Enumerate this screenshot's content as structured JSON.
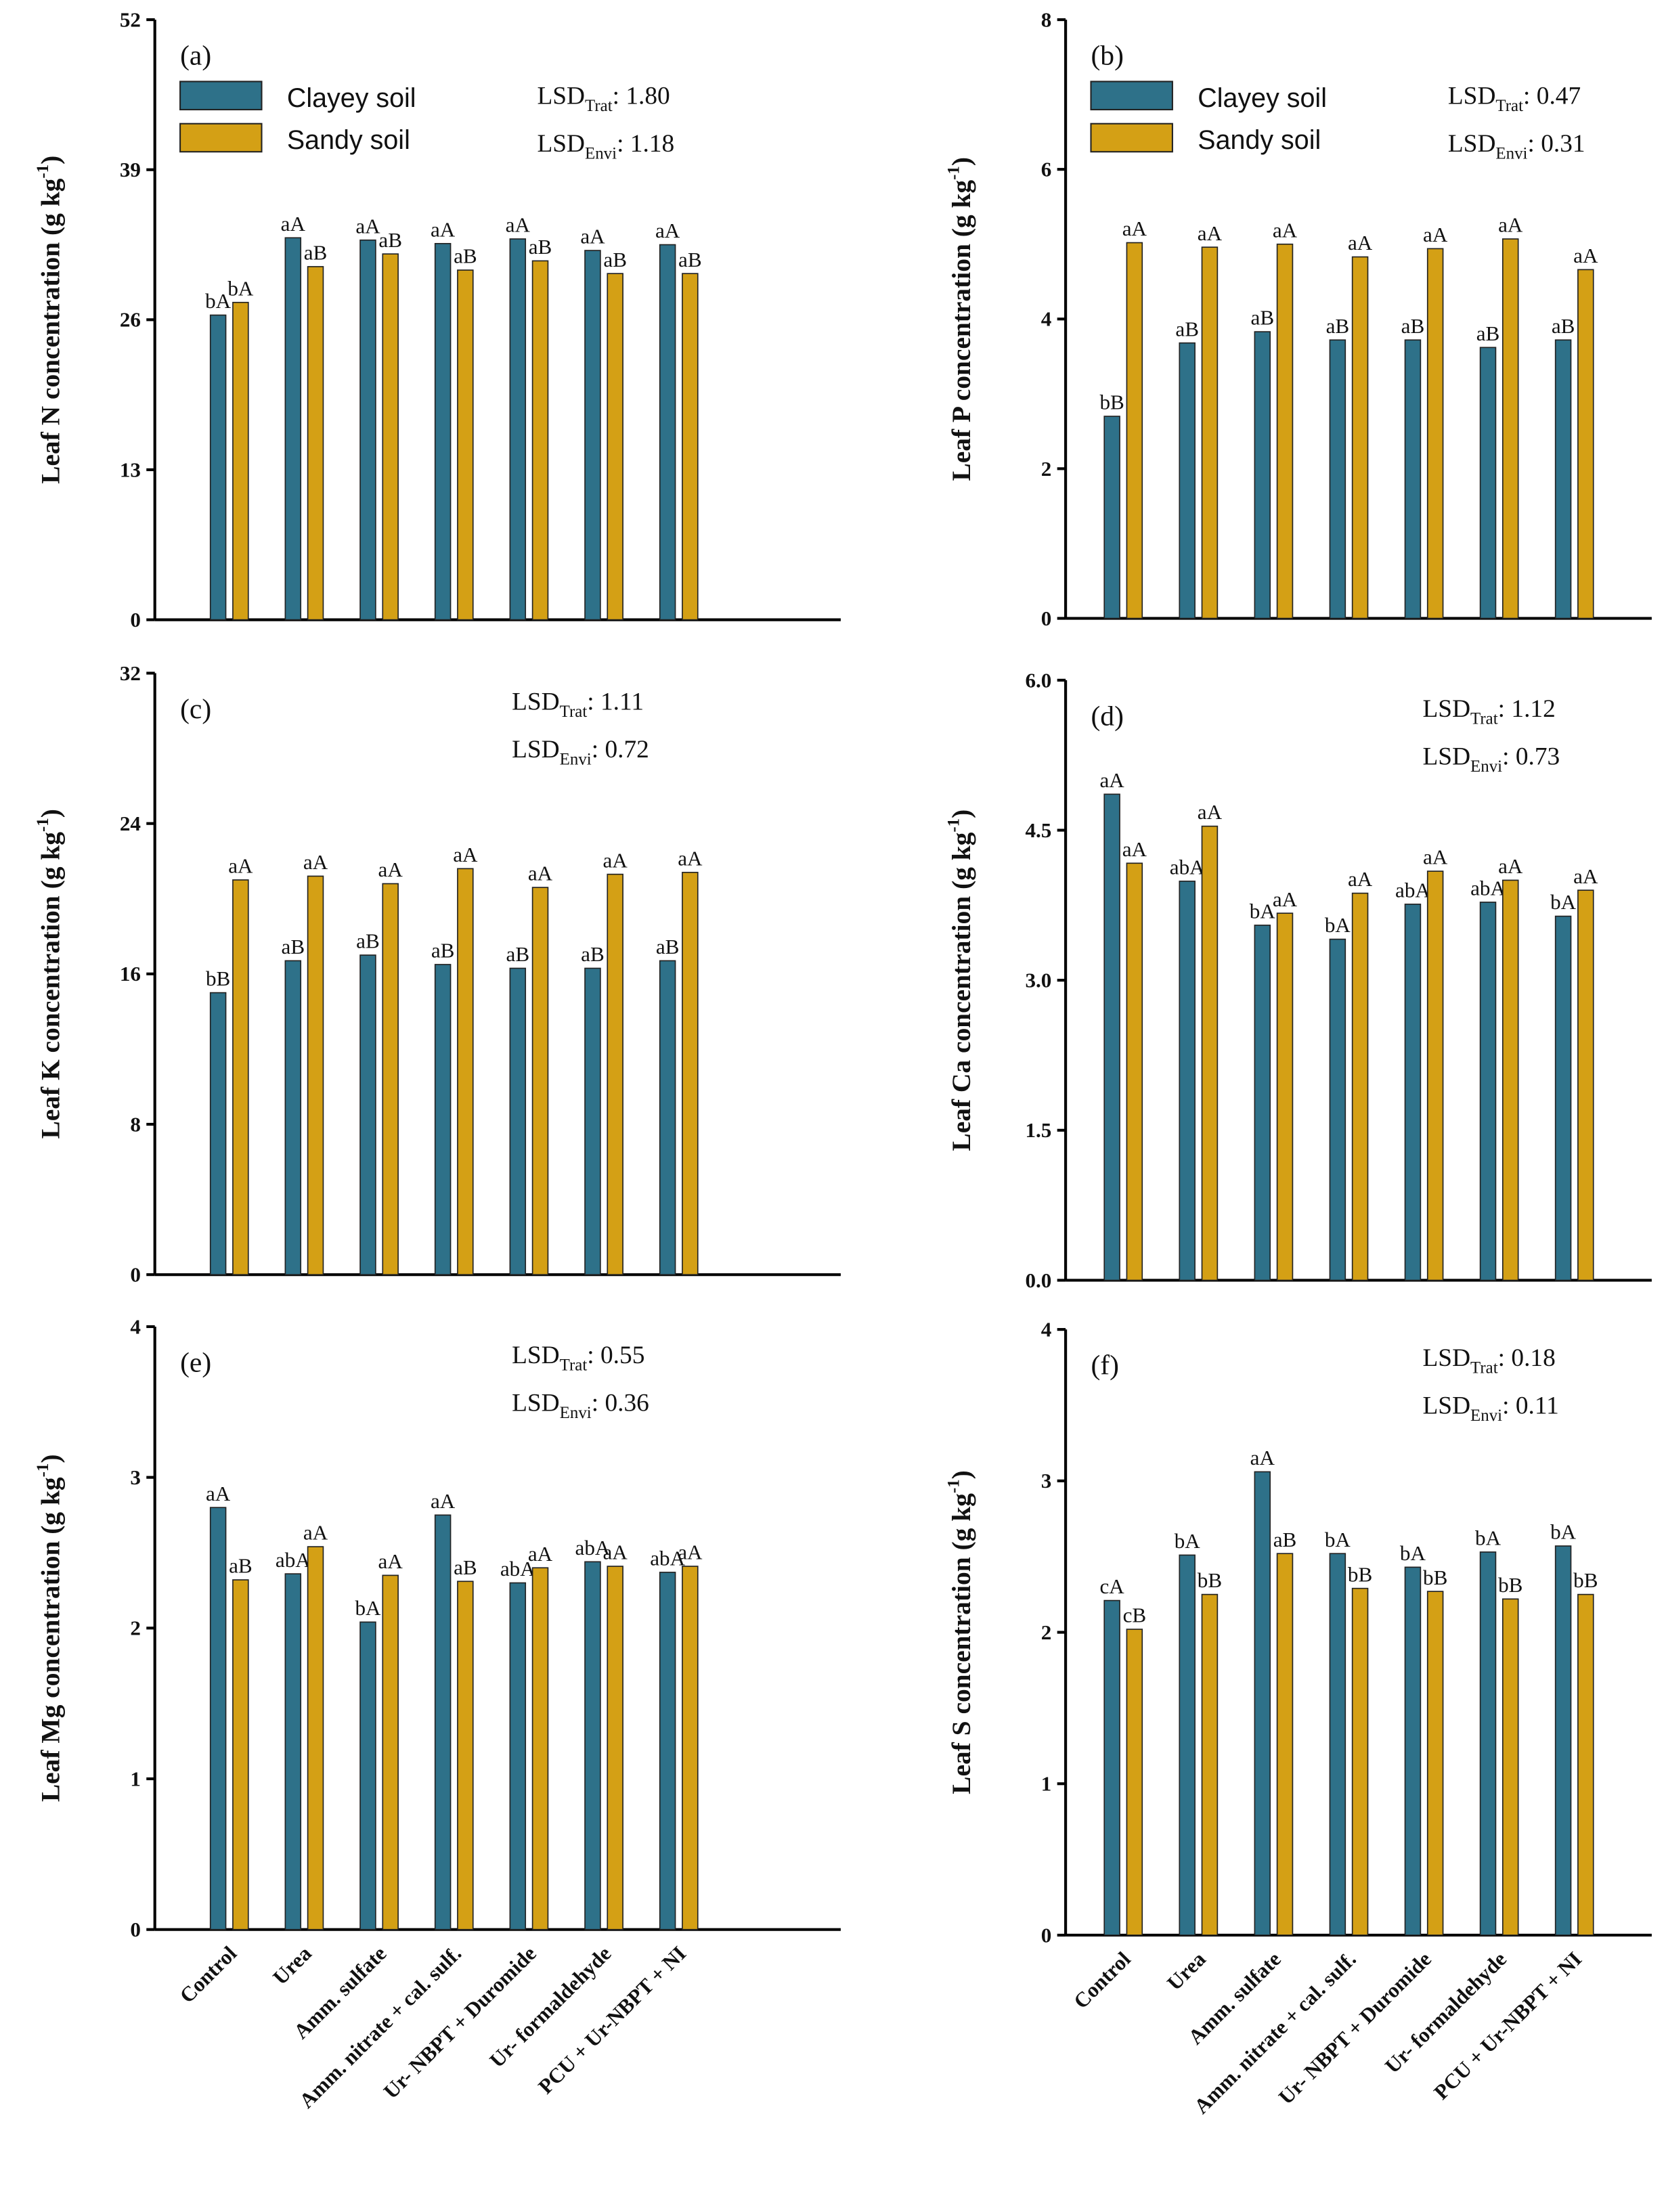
{
  "chart_data": {
    "type": "bar",
    "colors": {
      "Clayey soil": "#2e7189",
      "Sandy soil": "#d4a015"
    },
    "categories": [
      "Control",
      "Urea",
      "Amm. sulfate",
      "Amm. nitrate + cal. sulf.",
      "Ur- NBPT + Duromide",
      "Ur- formaldehyde",
      "PCU + Ur-NBPT + NI"
    ],
    "legend": [
      "Clayey soil",
      "Sandy soil"
    ],
    "panels": [
      {
        "label": "(a)",
        "ylabel": "Leaf N concentration (g kg",
        "ylabel_sup": "-1",
        "ylabel_end": ")",
        "ylim": [
          0,
          52
        ],
        "ticks": [
          "0",
          "13",
          "26",
          "39",
          "52"
        ],
        "show_legend": true,
        "lsd_trat": "1.80",
        "lsd_envi": "1.18",
        "series": [
          {
            "name": "Clayey soil",
            "values": [
              26.4,
              33.1,
              32.9,
              32.6,
              33.0,
              32.0,
              32.5
            ],
            "letters": [
              "bA",
              "aA",
              "aA",
              "aA",
              "aA",
              "aA",
              "aA"
            ]
          },
          {
            "name": "Sandy soil",
            "values": [
              27.5,
              30.6,
              31.7,
              30.3,
              31.1,
              30.0,
              30.0
            ],
            "letters": [
              "bA",
              "aB",
              "aB",
              "aB",
              "aB",
              "aB",
              "aB"
            ]
          }
        ]
      },
      {
        "label": "(b)",
        "ylabel": "Leaf P concentration (g kg",
        "ylabel_sup": "-1",
        "ylabel_end": ")",
        "ylim": [
          0,
          8
        ],
        "ticks": [
          "0",
          "2",
          "4",
          "6",
          "8"
        ],
        "show_legend": true,
        "lsd_trat": "0.47",
        "lsd_envi": "0.31",
        "series": [
          {
            "name": "Clayey soil",
            "values": [
              2.7,
              3.68,
              3.83,
              3.72,
              3.72,
              3.62,
              3.72
            ],
            "letters": [
              "bB",
              "aB",
              "aB",
              "aB",
              "aB",
              "aB",
              "aB"
            ]
          },
          {
            "name": "Sandy soil",
            "values": [
              5.02,
              4.96,
              5.0,
              4.83,
              4.94,
              5.07,
              4.66
            ],
            "letters": [
              "aA",
              "aA",
              "aA",
              "aA",
              "aA",
              "aA",
              "aA"
            ]
          }
        ]
      },
      {
        "label": "(c)",
        "ylabel": "Leaf K concentration (g kg",
        "ylabel_sup": "-1",
        "ylabel_end": ")",
        "ylim": [
          0,
          32
        ],
        "ticks": [
          "0",
          "8",
          "16",
          "24",
          "32"
        ],
        "show_legend": false,
        "lsd_trat": "1.11",
        "lsd_envi": "0.72",
        "series": [
          {
            "name": "Clayey soil",
            "values": [
              15.0,
              16.7,
              17.0,
              16.5,
              16.3,
              16.3,
              16.7
            ],
            "letters": [
              "bB",
              "aB",
              "aB",
              "aB",
              "aB",
              "aB",
              "aB"
            ]
          },
          {
            "name": "Sandy soil",
            "values": [
              21.0,
              21.2,
              20.8,
              21.6,
              20.6,
              21.3,
              21.4
            ],
            "letters": [
              "aA",
              "aA",
              "aA",
              "aA",
              "aA",
              "aA",
              "aA"
            ]
          }
        ]
      },
      {
        "label": "(d)",
        "ylabel": "Leaf Ca concentration (g kg",
        "ylabel_sup": "-1",
        "ylabel_end": ")",
        "ylim": [
          0,
          6
        ],
        "ticks": [
          "0.0",
          "1.5",
          "3.0",
          "4.5",
          "6.0"
        ],
        "show_legend": false,
        "lsd_trat": "1.12",
        "lsd_envi": "0.73",
        "series": [
          {
            "name": "Clayey soil",
            "values": [
              4.86,
              3.99,
              3.55,
              3.41,
              3.76,
              3.78,
              3.64
            ],
            "letters": [
              "aA",
              "abA",
              "bA",
              "bA",
              "abA",
              "abA",
              "bA"
            ]
          },
          {
            "name": "Sandy soil",
            "values": [
              4.17,
              4.54,
              3.67,
              3.87,
              4.09,
              4.0,
              3.9
            ],
            "letters": [
              "aA",
              "aA",
              "aA",
              "aA",
              "aA",
              "aA",
              "aA"
            ]
          }
        ]
      },
      {
        "label": "(e)",
        "ylabel": "Leaf Mg concentration (g kg",
        "ylabel_sup": "-1",
        "ylabel_end": ")",
        "ylim": [
          0,
          4
        ],
        "ticks": [
          "0",
          "1",
          "2",
          "3",
          "4"
        ],
        "show_legend": false,
        "lsd_trat": "0.55",
        "lsd_envi": "0.36",
        "series": [
          {
            "name": "Clayey soil",
            "values": [
              2.8,
              2.36,
              2.04,
              2.75,
              2.3,
              2.44,
              2.37
            ],
            "letters": [
              "aA",
              "abA",
              "bA",
              "aA",
              "abA",
              "abA",
              "abA"
            ]
          },
          {
            "name": "Sandy soil",
            "values": [
              2.32,
              2.54,
              2.35,
              2.31,
              2.4,
              2.41,
              2.41
            ],
            "letters": [
              "aB",
              "aA",
              "aA",
              "aB",
              "aA",
              "aA",
              "aA"
            ]
          }
        ]
      },
      {
        "label": "(f)",
        "ylabel": "Leaf S concentration (g kg",
        "ylabel_sup": "-1",
        "ylabel_end": ")",
        "ylim": [
          0,
          4
        ],
        "ticks": [
          "0",
          "1",
          "2",
          "3",
          "4"
        ],
        "show_legend": false,
        "lsd_trat": "0.18",
        "lsd_envi": "0.11",
        "series": [
          {
            "name": "Clayey soil",
            "values": [
              2.21,
              2.51,
              3.06,
              2.52,
              2.43,
              2.53,
              2.57
            ],
            "letters": [
              "cA",
              "bA",
              "aA",
              "bA",
              "bA",
              "bA",
              "bA"
            ]
          },
          {
            "name": "Sandy soil",
            "values": [
              2.02,
              2.25,
              2.52,
              2.29,
              2.27,
              2.22,
              2.25
            ],
            "letters": [
              "cB",
              "bB",
              "aB",
              "bB",
              "bB",
              "bB",
              "bB"
            ]
          }
        ]
      }
    ],
    "lsd_trat_label": "LSD",
    "lsd_trat_sub": "Trat",
    "lsd_envi_label": "LSD",
    "lsd_envi_sub": "Envi"
  }
}
